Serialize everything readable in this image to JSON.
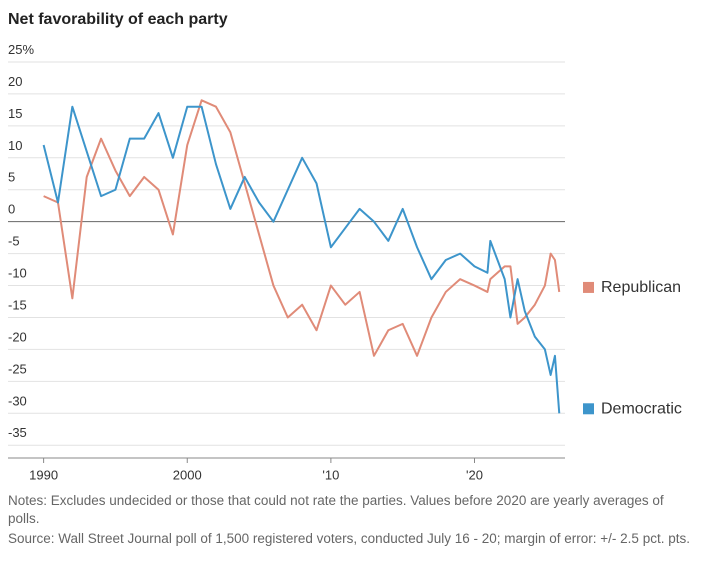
{
  "chart_data": {
    "type": "line",
    "title": "Net favorability of each party",
    "x": [
      1990,
      1991,
      1992,
      1993,
      1994,
      1995,
      1996,
      1997,
      1998,
      1999,
      2000,
      2001,
      2002,
      2003,
      2004,
      2005,
      2006,
      2007,
      2008,
      2009,
      2010,
      2011,
      2012,
      2013,
      2014,
      2015,
      2016,
      2017,
      2018,
      2019,
      2020,
      2020.9,
      2021.1,
      2022.1,
      2022.5,
      2023.0,
      2023.5,
      2024.2,
      2024.9,
      2025.3,
      2025.6,
      2025.9
    ],
    "series": [
      {
        "name": "Republican",
        "color": "#e08b78",
        "values": [
          4,
          3,
          -12,
          7,
          13,
          8,
          4,
          7,
          5,
          -2,
          12,
          19,
          18,
          14,
          6,
          -2,
          -10,
          -15,
          -13,
          -17,
          -10,
          -13,
          -11,
          -21,
          -17,
          -16,
          -21,
          -15,
          -11,
          -9,
          -10,
          -11,
          -9,
          -7,
          -7,
          -16,
          -15,
          -13,
          -10,
          -5,
          -6,
          -11
        ]
      },
      {
        "name": "Democratic",
        "color": "#3d95cb",
        "values": [
          12,
          3,
          18,
          11,
          4,
          5,
          13,
          13,
          17,
          10,
          18,
          18,
          9,
          2,
          7,
          3,
          0,
          5,
          10,
          6,
          -4,
          -1,
          2,
          0,
          -3,
          2,
          -4,
          -9,
          -6,
          -5,
          -7,
          -8,
          -3,
          -9,
          -15,
          -9,
          -14,
          -18,
          -20,
          -24,
          -21,
          -30
        ]
      }
    ],
    "xlim": [
      1989.4,
      2026.3
    ],
    "xticks": [
      1990,
      2000,
      {
        "value": 2010,
        "label": "'10"
      },
      {
        "value": 2020,
        "label": "'20"
      }
    ],
    "ylim": [
      -37,
      25
    ],
    "yticks": [
      {
        "value": 25,
        "label": "25%"
      },
      20,
      15,
      10,
      5,
      0,
      -5,
      -10,
      -15,
      -20,
      -25,
      -30,
      -35
    ],
    "grid": true,
    "notes": "Notes: Excludes undecided or those that could not rate the parties. Values before 2020 are yearly averages of polls.",
    "source": "Source: Wall Street Journal poll of 1,500 registered voters, conducted July 16 - 20; margin of error: +/- 2.5 pct. pts."
  }
}
